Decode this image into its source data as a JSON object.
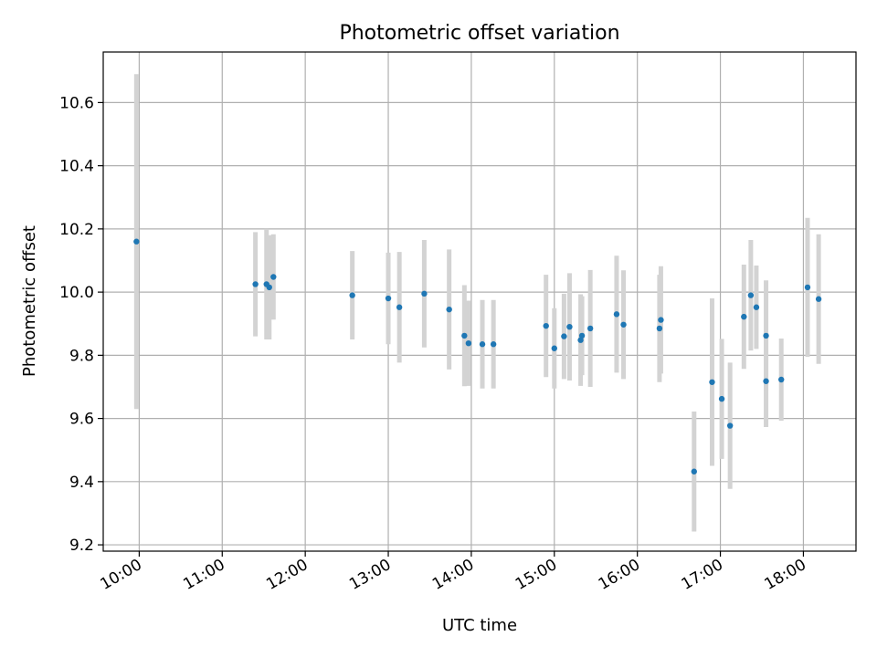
{
  "chart_data": {
    "type": "scatter",
    "title": "Photometric offset variation",
    "xlabel": "UTC time",
    "ylabel": "Photometric offset",
    "x_tick_labels": [
      "10:00",
      "11:00",
      "12:00",
      "13:00",
      "14:00",
      "15:00",
      "16:00",
      "17:00",
      "18:00"
    ],
    "x_ticks": [
      "10:00",
      "11:00",
      "12:00",
      "13:00",
      "14:00",
      "15:00",
      "16:00",
      "17:00",
      "18:00"
    ],
    "xlim": [
      "09:34",
      "18:38"
    ],
    "y_tick_labels": [
      "9.2",
      "9.4",
      "9.6",
      "9.8",
      "10.0",
      "10.2",
      "10.4",
      "10.6"
    ],
    "y_ticks": [
      9.2,
      9.4,
      9.6,
      9.8,
      10.0,
      10.2,
      10.4,
      10.6
    ],
    "ylim": [
      9.18,
      10.76
    ],
    "grid": true,
    "marker_color": "#1f77b4",
    "errorbar_color": "#d3d3d3",
    "points": [
      {
        "x": "09:58",
        "y": 10.16,
        "err": 0.53
      },
      {
        "x": "11:24",
        "y": 10.025,
        "err": 0.165
      },
      {
        "x": "11:32",
        "y": 10.025,
        "err": 0.175
      },
      {
        "x": "11:34",
        "y": 10.015,
        "err": 0.165
      },
      {
        "x": "11:37",
        "y": 10.048,
        "err": 0.135
      },
      {
        "x": "12:34",
        "y": 9.99,
        "err": 0.14
      },
      {
        "x": "13:00",
        "y": 9.98,
        "err": 0.145
      },
      {
        "x": "13:08",
        "y": 9.952,
        "err": 0.175
      },
      {
        "x": "13:26",
        "y": 9.995,
        "err": 0.17
      },
      {
        "x": "13:44",
        "y": 9.945,
        "err": 0.19
      },
      {
        "x": "13:55",
        "y": 9.862,
        "err": 0.16
      },
      {
        "x": "13:58",
        "y": 9.838,
        "err": 0.135
      },
      {
        "x": "14:08",
        "y": 9.835,
        "err": 0.14
      },
      {
        "x": "14:16",
        "y": 9.835,
        "err": 0.14
      },
      {
        "x": "14:54",
        "y": 9.893,
        "err": 0.162
      },
      {
        "x": "15:00",
        "y": 9.822,
        "err": 0.127
      },
      {
        "x": "15:07",
        "y": 9.86,
        "err": 0.135
      },
      {
        "x": "15:11",
        "y": 9.89,
        "err": 0.17
      },
      {
        "x": "15:19",
        "y": 9.848,
        "err": 0.145
      },
      {
        "x": "15:20",
        "y": 9.862,
        "err": 0.125
      },
      {
        "x": "15:26",
        "y": 9.885,
        "err": 0.185
      },
      {
        "x": "15:45",
        "y": 9.93,
        "err": 0.185
      },
      {
        "x": "15:50",
        "y": 9.897,
        "err": 0.172
      },
      {
        "x": "16:16",
        "y": 9.885,
        "err": 0.17
      },
      {
        "x": "16:17",
        "y": 9.912,
        "err": 0.17
      },
      {
        "x": "16:41",
        "y": 9.432,
        "err": 0.19
      },
      {
        "x": "16:54",
        "y": 9.715,
        "err": 0.265
      },
      {
        "x": "17:01",
        "y": 9.662,
        "err": 0.19
      },
      {
        "x": "17:07",
        "y": 9.577,
        "err": 0.2
      },
      {
        "x": "17:17",
        "y": 9.922,
        "err": 0.165
      },
      {
        "x": "17:22",
        "y": 9.99,
        "err": 0.175
      },
      {
        "x": "17:26",
        "y": 9.952,
        "err": 0.132
      },
      {
        "x": "17:33",
        "y": 9.862,
        "err": 0.175
      },
      {
        "x": "17:33",
        "y": 9.718,
        "err": 0.145
      },
      {
        "x": "17:44",
        "y": 9.723,
        "err": 0.13
      },
      {
        "x": "18:03",
        "y": 10.015,
        "err": 0.22
      },
      {
        "x": "18:11",
        "y": 9.978,
        "err": 0.205
      }
    ]
  }
}
